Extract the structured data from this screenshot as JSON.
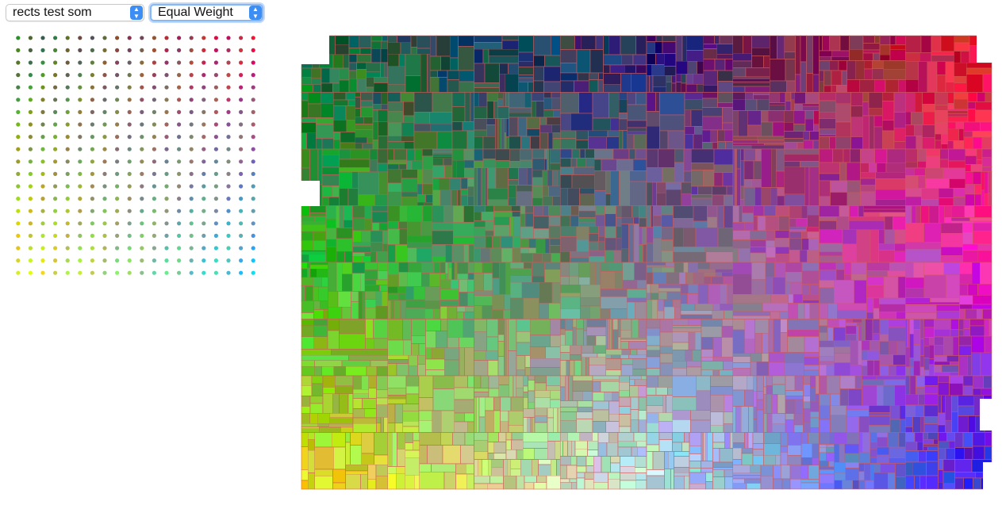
{
  "controls": {
    "dataset_select": {
      "value": "rects test som",
      "options": [
        "rects test som"
      ]
    },
    "weight_select": {
      "value": "Equal Weight",
      "options": [
        "Equal Weight"
      ]
    }
  },
  "palette": {
    "description_name": "som-color-grid",
    "grid": [
      20,
      20
    ],
    "corner_colors": {
      "top_left": "#2a7a3a",
      "top_right": "#e0104a",
      "bottom_left": "#f0e810",
      "bottom_right": "#20c8f0",
      "center": "#7a6a8a"
    }
  },
  "treemap": {
    "cell_border_color": "#d05a5a",
    "region_colors": {
      "top_left": "#1a6a3a",
      "top_mid": "#1a1a70",
      "top_right": "#f02020",
      "mid_left": "#20c020",
      "center": "#7a7a8a",
      "mid_right": "#f020c0",
      "bottom_left": "#f0e010",
      "bottom_mid": "#c0f0f0",
      "bottom_right": "#2020e0"
    }
  }
}
